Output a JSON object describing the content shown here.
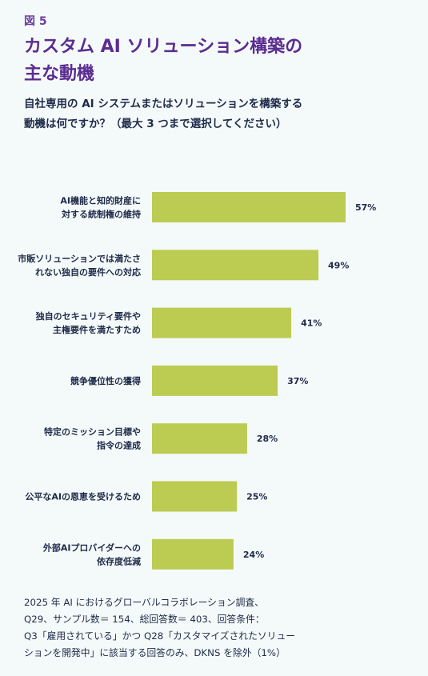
{
  "figure_label": "図 5",
  "title_lines": [
    "カスタム AI ソリューション構築の",
    "主な動機"
  ],
  "subtitle_lines": [
    "自社専用の AI システムまたはソリューションを構築する",
    "動機は何ですか？（最大 3 つまで選択してください）"
  ],
  "colors": {
    "bar": "#bccb52",
    "title": "#5b2d90",
    "label": "#1f2a4a"
  },
  "chart_data": {
    "type": "bar",
    "orientation": "horizontal",
    "categories": [
      [
        "AI機能と知的財産に",
        "対する統制権の維持"
      ],
      [
        "市販ソリューションでは満たさ",
        "れない独自の要件への対応"
      ],
      [
        "独自のセキュリティ要件や",
        "主権要件を満たすため"
      ],
      [
        "競争優位性の獲得"
      ],
      [
        "特定のミッション目標や",
        "指令の達成"
      ],
      [
        "公平なAIの恩恵を受けるため"
      ],
      [
        "外部AIプロバイダーへの",
        "依存度低減"
      ]
    ],
    "values": [
      57,
      49,
      41,
      37,
      28,
      25,
      24
    ],
    "value_labels": [
      "57%",
      "49%",
      "41%",
      "37%",
      "28%",
      "25%",
      "24%"
    ],
    "xlim": [
      0,
      57
    ],
    "grid": false
  },
  "source_lines": [
    "2025 年 AI におけるグローバルコラボレーション調査、",
    "Q29、サンプル数＝ 154、総回答数＝ 403、回答条件：",
    "Q3「雇用されている」かつ Q28「カスタマイズされたソリュー",
    "ションを開発中」に該当する回答のみ、DKNS を除外（1%）"
  ]
}
